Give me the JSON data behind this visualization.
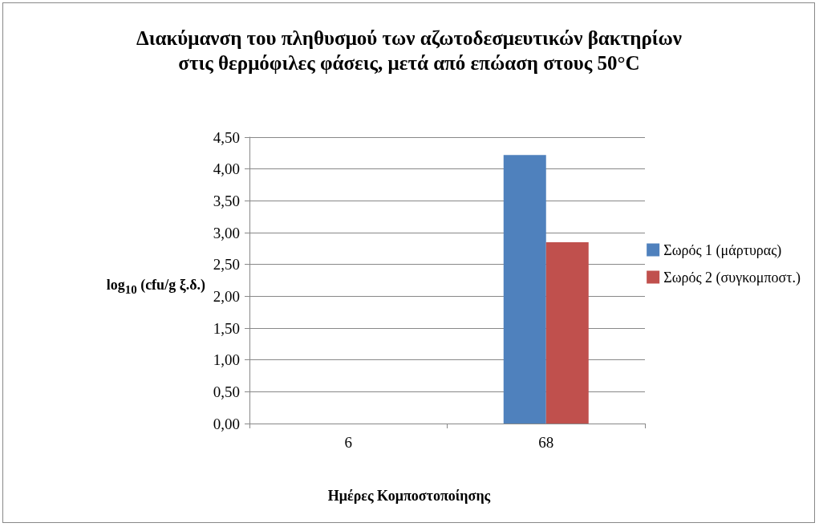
{
  "chart_data": {
    "type": "bar",
    "title": "Διακύμανση του πληθυσμού των αζωτοδεσμευτικών βακτηρίων στις θερμόφιλες φάσεις, μετά από επώαση στους 50°C",
    "xlabel": "Ημέρες Κομποστοποίησης",
    "ylabel": "log$_{10}$ (cfu/g ξ.δ.)",
    "categories": [
      "6",
      "68"
    ],
    "series": [
      {
        "name": "Σωρός 1 (μάρτυρας)",
        "color": "#4f81bd",
        "values": [
          0,
          4.22
        ]
      },
      {
        "name": "Σωρός 2 (συγκομποστ.)",
        "color": "#c0504d",
        "values": [
          0,
          2.85
        ]
      }
    ],
    "ylim": [
      0,
      4.5
    ],
    "yticks": [
      {
        "value": 0,
        "label": "0,00"
      },
      {
        "value": 0.5,
        "label": "0,50"
      },
      {
        "value": 1,
        "label": "1,00"
      },
      {
        "value": 1.5,
        "label": "1,50"
      },
      {
        "value": 2,
        "label": "2,00"
      },
      {
        "value": 2.5,
        "label": "2,50"
      },
      {
        "value": 3,
        "label": "3,00"
      },
      {
        "value": 3.5,
        "label": "3,50"
      },
      {
        "value": 4,
        "label": "4,00"
      },
      {
        "value": 4.5,
        "label": "4,50"
      }
    ],
    "grid": "y",
    "legend": "right"
  }
}
